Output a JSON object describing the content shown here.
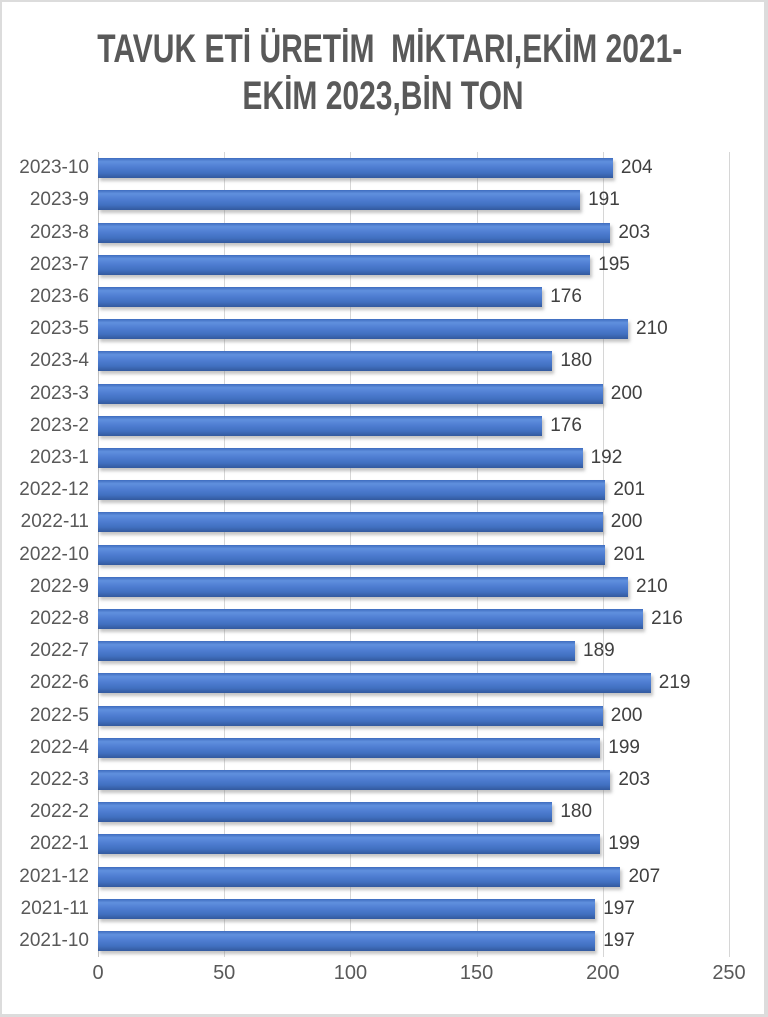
{
  "frame": {
    "background": "#ffffff",
    "border_color": "#dcdcdc"
  },
  "title": {
    "line1": "TAVUK ETİ ÜRETİM  MİKTARI,EKİM 2021-",
    "line2": "EKİM 2023,BİN TON",
    "full": "TAVUK ETİ ÜRETİM  MİKTARI,EKİM 2021-EKİM 2023,BİN TON",
    "color": "#595959"
  },
  "colors": {
    "bar_fill": "#4472C4",
    "bar_highlight": "#6090de",
    "bar_shadow_edge": "#335a9e",
    "gridline": "#d6d6d6",
    "axis_line": "#c4c4c4",
    "category_label": "#595959",
    "value_label": "#404040",
    "tick_label": "#595959"
  },
  "chart_data": {
    "type": "bar",
    "orientation": "horizontal",
    "title": "TAVUK ETİ ÜRETİM  MİKTARI,EKİM 2021-EKİM 2023,BİN TON",
    "xlabel": "",
    "ylabel": "",
    "categories": [
      "2023-10",
      "2023-9",
      "2023-8",
      "2023-7",
      "2023-6",
      "2023-5",
      "2023-4",
      "2023-3",
      "2023-2",
      "2023-1",
      "2022-12",
      "2022-11",
      "2022-10",
      "2022-9",
      "2022-8",
      "2022-7",
      "2022-6",
      "2022-5",
      "2022-4",
      "2022-3",
      "2022-2",
      "2022-1",
      "2021-12",
      "2021-11",
      "2021-10"
    ],
    "values": [
      204,
      191,
      203,
      195,
      176,
      210,
      180,
      200,
      176,
      192,
      201,
      200,
      201,
      210,
      216,
      189,
      219,
      200,
      199,
      203,
      180,
      199,
      207,
      197,
      197
    ],
    "xlim": [
      0,
      250
    ],
    "xticks": [
      0,
      50,
      100,
      150,
      200,
      250
    ],
    "grid": true,
    "data_labels": true,
    "legend": "none",
    "unit": "bin ton"
  }
}
